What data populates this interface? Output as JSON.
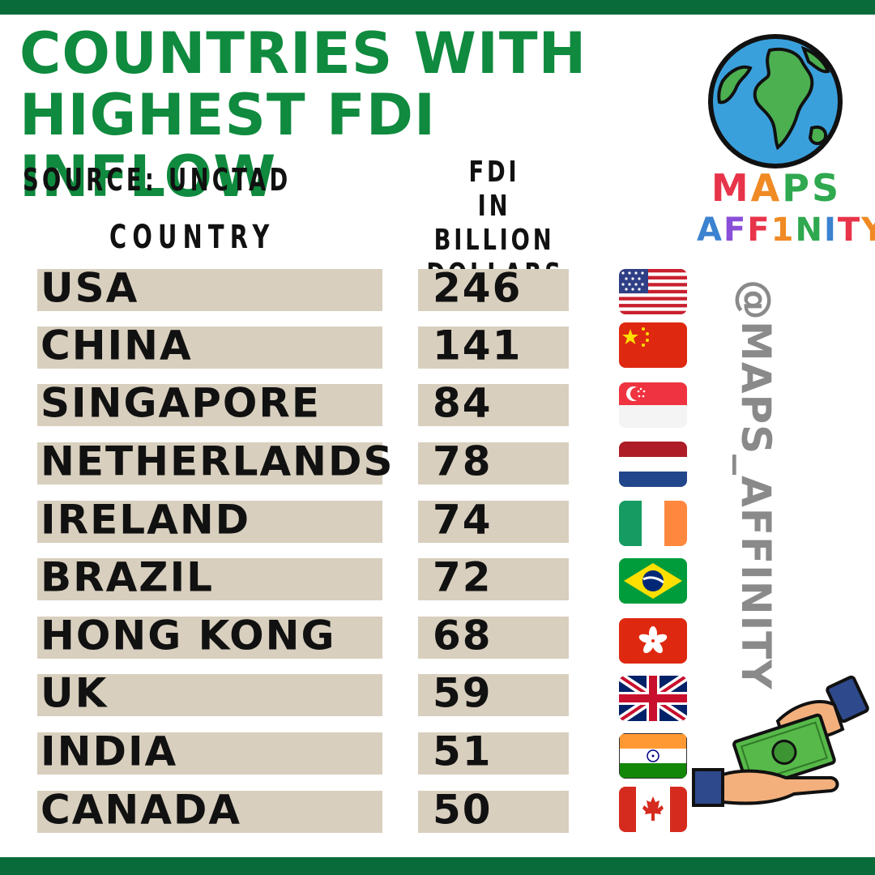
{
  "title_lines": [
    "COUNTRIES WITH",
    "HIGHEST FDI INFLOW"
  ],
  "source": "SOURCE: UNCTAD",
  "column_headers": {
    "country": "COUNTRY",
    "fdi_lines": [
      "FDI",
      "IN BILLION",
      "DOLLARS"
    ]
  },
  "brand": {
    "line1": [
      "M",
      "A",
      "P",
      "S"
    ],
    "line2": [
      "A",
      "F",
      "F",
      "1",
      "N",
      "I",
      "T",
      "Y"
    ],
    "handle": "@MAPS_AFFINITY"
  },
  "colors": {
    "title": "#0f8a3e",
    "band": "#0a6b3a",
    "row_background": "#d8cfbe",
    "handle": "#8a8a8a",
    "brand_line1": [
      "#e8344a",
      "#f08a24",
      "#2fa84f",
      "#2fa84f"
    ],
    "brand_line2": [
      "#3b82d0",
      "#8a4fd8",
      "#e8344a",
      "#f08a24",
      "#2fa84f",
      "#3b82d0",
      "#e8344a",
      "#f08a24"
    ]
  },
  "chart_data": {
    "type": "table",
    "title": "COUNTRIES WITH HIGHEST FDI INFLOW",
    "source": "SOURCE: UNCTAD",
    "columns": [
      "COUNTRY",
      "FDI IN BILLION DOLLARS"
    ],
    "rows": [
      {
        "country": "USA",
        "value": 246,
        "flag": "usa-flag-icon"
      },
      {
        "country": "CHINA",
        "value": 141,
        "flag": "china-flag-icon"
      },
      {
        "country": "SINGAPORE",
        "value": 84,
        "flag": "singapore-flag-icon"
      },
      {
        "country": "NETHERLANDS",
        "value": 78,
        "flag": "netherlands-flag-icon"
      },
      {
        "country": "IRELAND",
        "value": 74,
        "flag": "ireland-flag-icon"
      },
      {
        "country": "BRAZIL",
        "value": 72,
        "flag": "brazil-flag-icon"
      },
      {
        "country": "HONG KONG",
        "value": 68,
        "flag": "hong-kong-flag-icon"
      },
      {
        "country": "UK",
        "value": 59,
        "flag": "uk-flag-icon"
      },
      {
        "country": "INDIA",
        "value": 51,
        "flag": "india-flag-icon"
      },
      {
        "country": "CANADA",
        "value": 50,
        "flag": "canada-flag-icon"
      }
    ]
  }
}
